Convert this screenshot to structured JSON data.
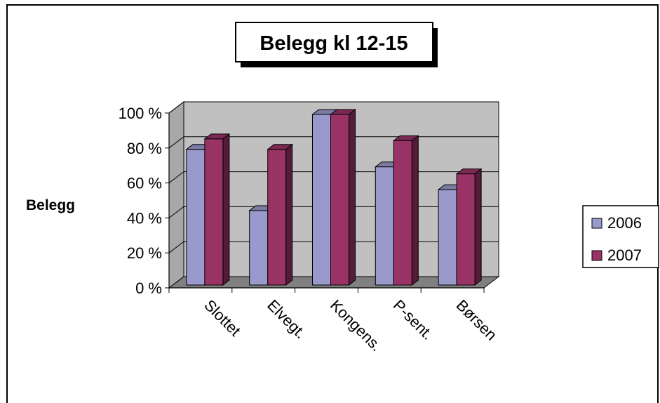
{
  "chart_data": {
    "type": "bar",
    "title": "Belegg kl 12-15",
    "ylabel": "Belegg",
    "xlabel": "",
    "categories": [
      "Slottet",
      "Elvegt.",
      "Kongens.",
      "P-sent.",
      "Børsen"
    ],
    "series": [
      {
        "name": "2006",
        "values": [
          80,
          45,
          100,
          70,
          57
        ],
        "color": "#9999cc"
      },
      {
        "name": "2007",
        "values": [
          86,
          80,
          100,
          85,
          66
        ],
        "color": "#993366"
      }
    ],
    "ylim": [
      0,
      100
    ],
    "yticks": [
      {
        "value": 0,
        "label": "0 %"
      },
      {
        "value": 20,
        "label": "20 %"
      },
      {
        "value": 40,
        "label": "40 %"
      },
      {
        "value": 60,
        "label": "60 %"
      },
      {
        "value": 80,
        "label": "80 %"
      },
      {
        "value": 100,
        "label": "100 %"
      }
    ],
    "grid": true,
    "legend_position": "right",
    "style": "3d-clustered-column"
  }
}
